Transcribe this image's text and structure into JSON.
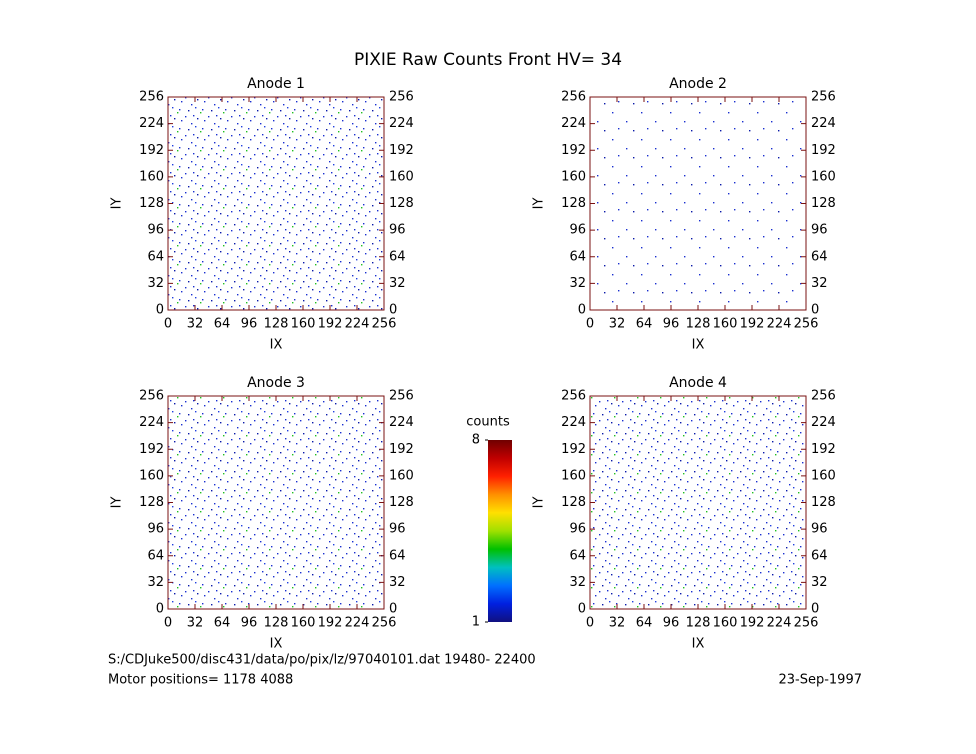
{
  "title": "PIXIE Raw Counts Front HV= 34",
  "chart_data": [
    {
      "type": "heatmap",
      "title": "Anode 1",
      "x_label": "IX",
      "y_label": "IY",
      "xlim": [
        0,
        256
      ],
      "ylim": [
        0,
        256
      ],
      "xticks": [
        0,
        32,
        64,
        96,
        128,
        160,
        192,
        224,
        256
      ],
      "yticks": [
        0,
        32,
        64,
        96,
        128,
        160,
        192,
        224,
        256
      ]
    },
    {
      "type": "heatmap",
      "title": "Anode 2",
      "x_label": "IX",
      "y_label": "IY",
      "xlim": [
        0,
        256
      ],
      "ylim": [
        0,
        256
      ],
      "xticks": [
        0,
        32,
        64,
        96,
        128,
        160,
        192,
        224,
        256
      ],
      "yticks": [
        0,
        32,
        64,
        96,
        128,
        160,
        192,
        224,
        256
      ]
    },
    {
      "type": "heatmap",
      "title": "Anode 3",
      "x_label": "IX",
      "y_label": "IY",
      "xlim": [
        0,
        256
      ],
      "ylim": [
        0,
        256
      ],
      "xticks": [
        0,
        32,
        64,
        96,
        128,
        160,
        192,
        224,
        256
      ],
      "yticks": [
        0,
        32,
        64,
        96,
        128,
        160,
        192,
        224,
        256
      ]
    },
    {
      "type": "heatmap",
      "title": "Anode 4",
      "x_label": "IX",
      "y_label": "IY",
      "xlim": [
        0,
        256
      ],
      "ylim": [
        0,
        256
      ],
      "xticks": [
        0,
        32,
        64,
        96,
        128,
        160,
        192,
        224,
        256
      ],
      "yticks": [
        0,
        32,
        64,
        96,
        128,
        160,
        192,
        224,
        256
      ]
    }
  ],
  "colorbar": {
    "label": "counts",
    "lim": [
      1,
      8
    ],
    "ticks": [
      1,
      8
    ],
    "colors": [
      "#101080",
      "#0020e0",
      "#0070ff",
      "#00c0c0",
      "#00c000",
      "#a0e000",
      "#ffe000",
      "#ff9000",
      "#ff2000",
      "#c00000",
      "#700000"
    ]
  },
  "footer": {
    "file": "S:/CDJuke500/disc431/data/po/pix/lz/97040101.dat   19480- 22400",
    "motor": "Motor positions= 1178 4088",
    "date": "23-Sep-1997"
  }
}
